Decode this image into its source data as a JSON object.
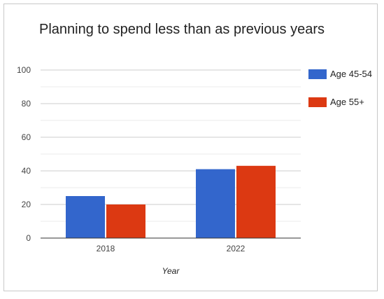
{
  "chart_data": {
    "type": "bar",
    "title": "Planning to spend less than as previous years",
    "xlabel": "Year",
    "ylabel": "",
    "categories": [
      "2018",
      "2022"
    ],
    "series": [
      {
        "name": "Age 45-54",
        "color": "#3366cc",
        "values": [
          25,
          41
        ]
      },
      {
        "name": "Age 55+",
        "color": "#dc3912",
        "values": [
          20,
          43
        ]
      }
    ],
    "ylim": [
      0,
      100
    ],
    "yticks": [
      0,
      20,
      40,
      60,
      80,
      100
    ],
    "grid": true,
    "legend_position": "right"
  }
}
